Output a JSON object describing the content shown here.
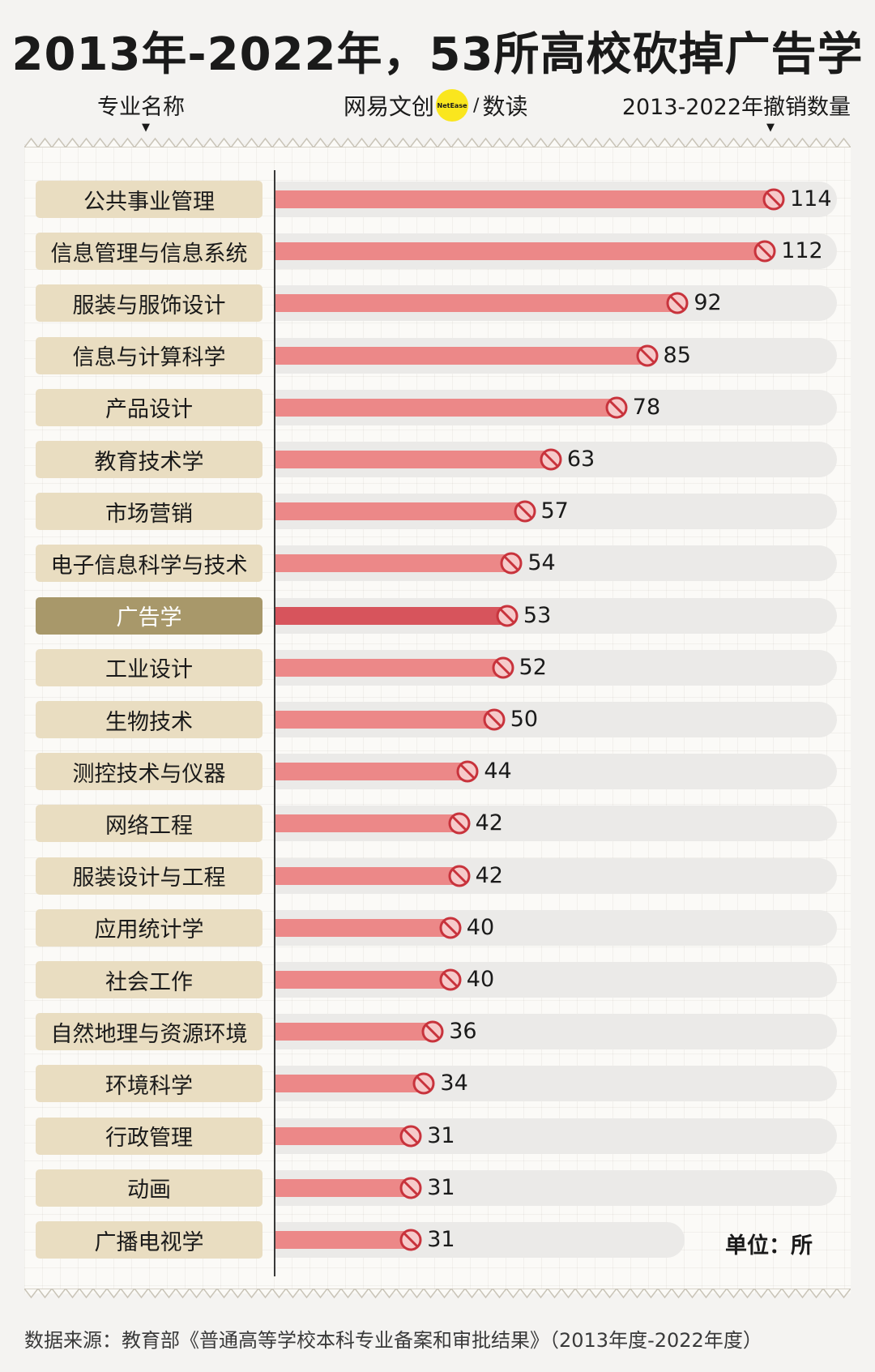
{
  "title": "2013年-2022年，53所高校砍掉广告学",
  "header": {
    "left_label": "专业名称",
    "right_label": "2013-2022年撤销数量",
    "brand": {
      "name": "网易文创",
      "badge": "NetEase",
      "section": "数读",
      "badge_color": "#fae61e"
    }
  },
  "chart_data": {
    "type": "bar",
    "orientation": "horizontal",
    "categories": [
      "公共事业管理",
      "信息管理与信息系统",
      "服装与服饰设计",
      "信息与计算科学",
      "产品设计",
      "教育技术学",
      "市场营销",
      "电子信息科学与技术",
      "广告学",
      "工业设计",
      "生物技术",
      "测控技术与仪器",
      "网络工程",
      "服装设计与工程",
      "应用统计学",
      "社会工作",
      "自然地理与资源环境",
      "环境科学",
      "行政管理",
      "动画",
      "广播电视学"
    ],
    "values": [
      114,
      112,
      92,
      85,
      78,
      63,
      57,
      54,
      53,
      52,
      50,
      44,
      42,
      42,
      40,
      40,
      36,
      34,
      31,
      31,
      31
    ],
    "highlight": "广告学",
    "unit": "单位：所",
    "colors": {
      "bar": "#ec8888",
      "highlight_bar": "#d7545c",
      "label_bg": "#e9ddc1",
      "highlight_label_bg": "#a8986a",
      "icon_fill": "#f6caca",
      "icon_stroke": "#c8333c"
    }
  },
  "source": "数据来源：教育部《普通高等学校本科专业备案和审批结果》（2013年度-2022年度）"
}
